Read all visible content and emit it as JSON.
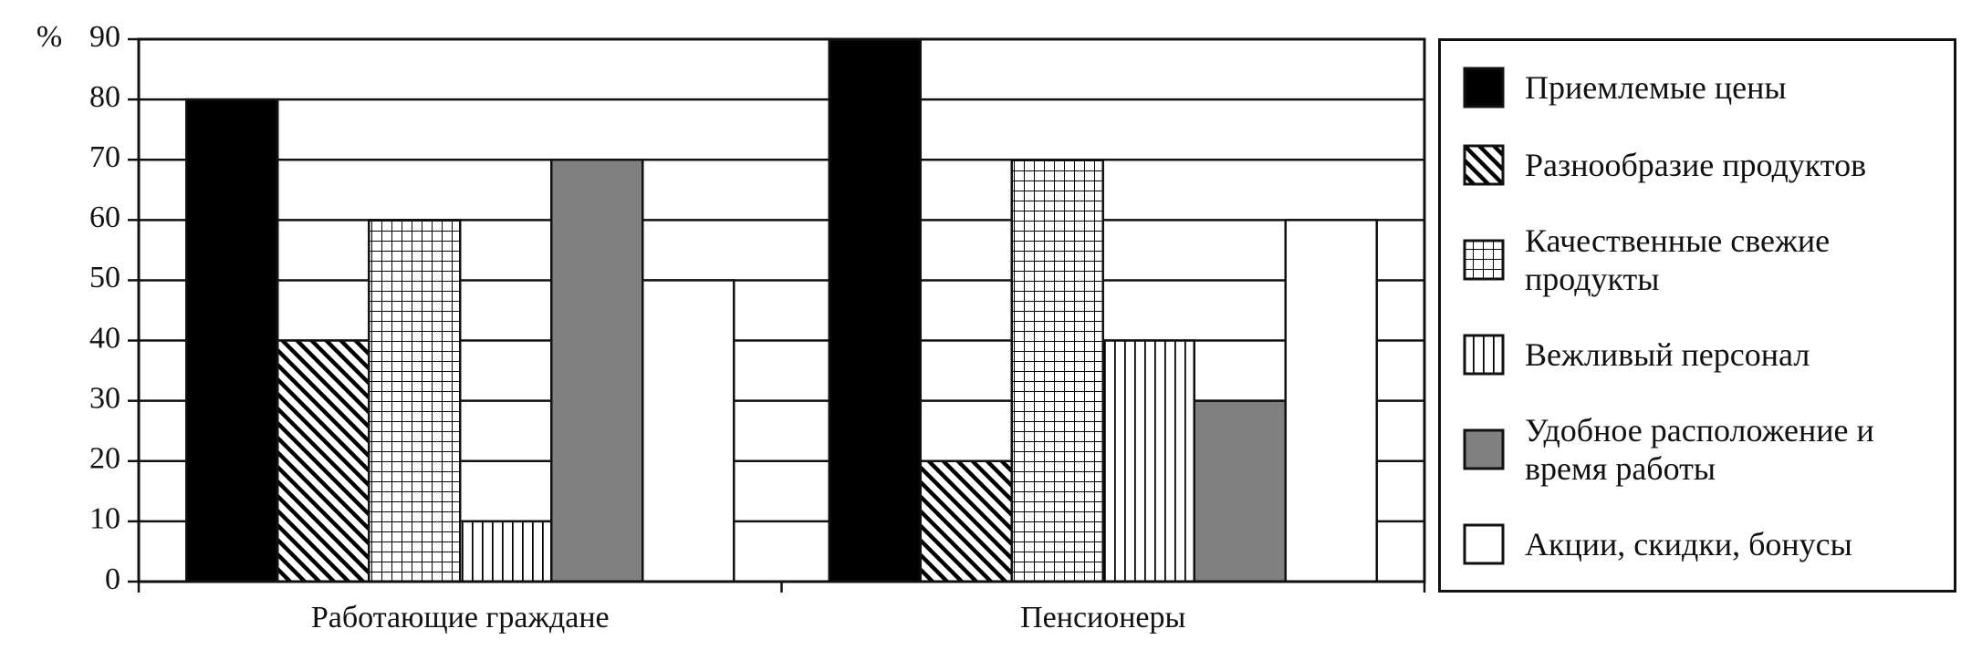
{
  "chart_data": {
    "type": "bar",
    "y_label": "%",
    "categories": [
      "Работающие граждане",
      "Пенсионеры"
    ],
    "series": [
      {
        "name": "Приемлемые цены",
        "color": "#000000",
        "pattern": "solid",
        "values": [
          80,
          90
        ]
      },
      {
        "name": "Разнообразие продуктов",
        "color": "#000000",
        "pattern": "diagonal",
        "values": [
          40,
          20
        ]
      },
      {
        "name": "Качественные свежие продукты",
        "color": "#000000",
        "pattern": "grid",
        "values": [
          60,
          70
        ]
      },
      {
        "name": "Вежливый персонал",
        "color": "#000000",
        "pattern": "vertical",
        "values": [
          10,
          40
        ]
      },
      {
        "name": "Удобное расположение и время работы",
        "color": "#808080",
        "pattern": "solid",
        "values": [
          70,
          30
        ]
      },
      {
        "name": "Акции, скидки, бонусы",
        "color": "#ffffff",
        "pattern": "solid",
        "values": [
          50,
          60
        ]
      }
    ],
    "ylim": [
      0,
      90
    ],
    "yticks": [
      0,
      10,
      20,
      30,
      40,
      50,
      60,
      70,
      80,
      90
    ],
    "grid": true,
    "legend": "right"
  }
}
